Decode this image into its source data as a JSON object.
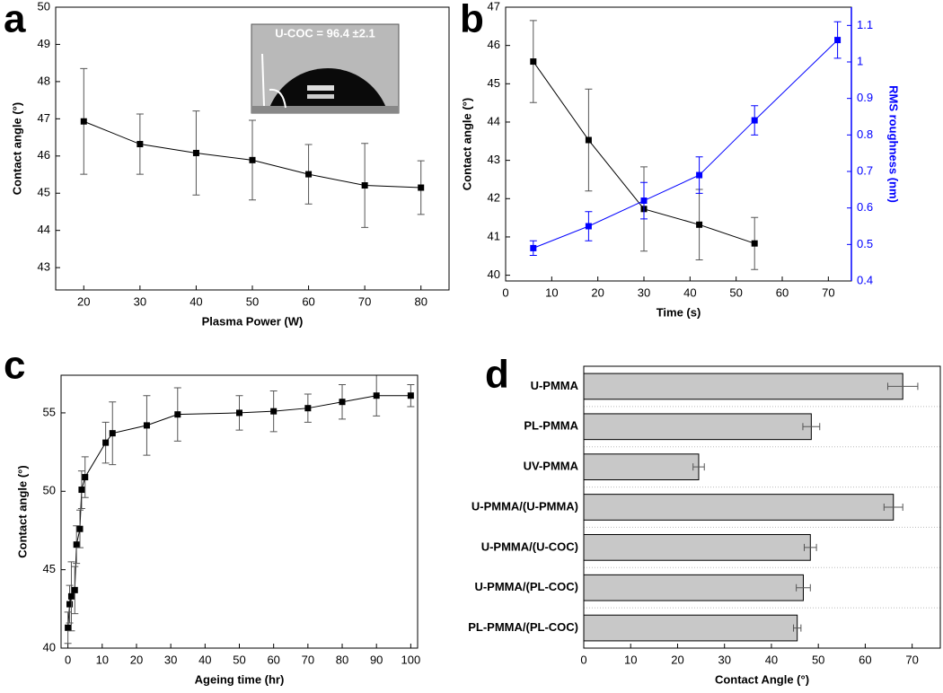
{
  "chart_data": [
    {
      "type": "line",
      "panel_label": "a",
      "annotation": "U-COC = 96.4 ±2.1",
      "x_label": "Plasma Power (W)",
      "y_label": "Contact angle (°)",
      "x": [
        20,
        30,
        40,
        50,
        60,
        70,
        80
      ],
      "series": [
        {
          "color": "#000000",
          "values": [
            46.93,
            46.32,
            46.08,
            45.89,
            45.51,
            45.21,
            45.15
          ],
          "errors": [
            1.42,
            0.81,
            1.13,
            1.07,
            0.8,
            1.13,
            0.72
          ]
        }
      ],
      "xlim": [
        15,
        85
      ],
      "xticks": [
        20,
        30,
        40,
        50,
        60,
        70,
        80
      ],
      "ylim": [
        42.4,
        50
      ],
      "yticks": [
        43,
        44,
        45,
        46,
        47,
        48,
        49,
        50
      ]
    },
    {
      "type": "line",
      "panel_label": "b",
      "x_label": "Time (s)",
      "y_label": "Contact angle (°)",
      "y2_label": "RMS roughness (nm)",
      "series": [
        {
          "color": "#000000",
          "x": [
            6,
            18,
            30,
            42,
            54
          ],
          "values": [
            45.58,
            43.53,
            41.73,
            41.32,
            40.83
          ],
          "errors": [
            1.07,
            1.33,
            1.1,
            0.92,
            0.68
          ]
        },
        {
          "color": "#0000ff",
          "axis": "y2",
          "x": [
            6,
            18,
            30,
            42,
            54,
            72
          ],
          "values": [
            0.49,
            0.55,
            0.62,
            0.69,
            0.84,
            1.06
          ],
          "errors": [
            0.02,
            0.04,
            0.05,
            0.05,
            0.04,
            0.05
          ]
        }
      ],
      "xlim": [
        0,
        75
      ],
      "xticks": [
        0,
        10,
        20,
        30,
        40,
        50,
        60,
        70
      ],
      "ylim": [
        39.85,
        47
      ],
      "yticks": [
        40,
        41,
        42,
        43,
        44,
        45,
        46,
        47
      ],
      "y2lim": [
        0.4,
        1.15
      ],
      "y2ticks": [
        0.4,
        0.5,
        0.6,
        0.7,
        0.8,
        0.9,
        1.0,
        1.1
      ]
    },
    {
      "type": "line",
      "panel_label": "c",
      "x_label": "Ageing time (hr)",
      "y_label": "Contact angle (°)",
      "x": [
        0,
        0.5,
        1,
        2,
        2.5,
        3.5,
        4,
        5,
        11,
        13,
        23,
        32,
        50,
        60,
        70,
        80,
        90,
        100
      ],
      "series": [
        {
          "color": "#000000",
          "values": [
            41.3,
            42.8,
            43.3,
            43.7,
            46.6,
            47.6,
            50.1,
            50.9,
            53.1,
            53.7,
            54.2,
            54.9,
            55.0,
            55.1,
            55.3,
            55.7,
            56.1,
            56.1
          ],
          "errors": [
            1.0,
            1.2,
            2.2,
            1.5,
            1.2,
            1.2,
            1.2,
            1.3,
            1.3,
            2.0,
            1.9,
            1.7,
            1.1,
            1.3,
            0.9,
            1.1,
            1.3,
            0.7
          ]
        }
      ],
      "xlim": [
        -2,
        102
      ],
      "xticks": [
        0,
        10,
        20,
        30,
        40,
        50,
        60,
        70,
        80,
        90,
        100
      ],
      "ylim": [
        40,
        57.4
      ],
      "yticks": [
        40,
        45,
        50,
        55
      ]
    },
    {
      "type": "hbar",
      "panel_label": "d",
      "x_label": "Contact Angle (°)",
      "color": "#c8c8c8",
      "categories": [
        "U-PMMA",
        "PL-PMMA",
        "UV-PMMA",
        "U-PMMA/(U-PMMA)",
        "U-PMMA/(U-COC)",
        "U-PMMA/(PL-COC)",
        "PL-PMMA/(PL-COC)"
      ],
      "values": [
        68,
        48.5,
        24.5,
        66,
        48.3,
        46.8,
        45.5
      ],
      "errors": [
        3.2,
        1.8,
        1.2,
        2,
        1.3,
        1.5,
        0.8
      ],
      "xlim": [
        0,
        76
      ],
      "xticks": [
        0,
        10,
        20,
        30,
        40,
        50,
        60,
        70
      ]
    }
  ]
}
